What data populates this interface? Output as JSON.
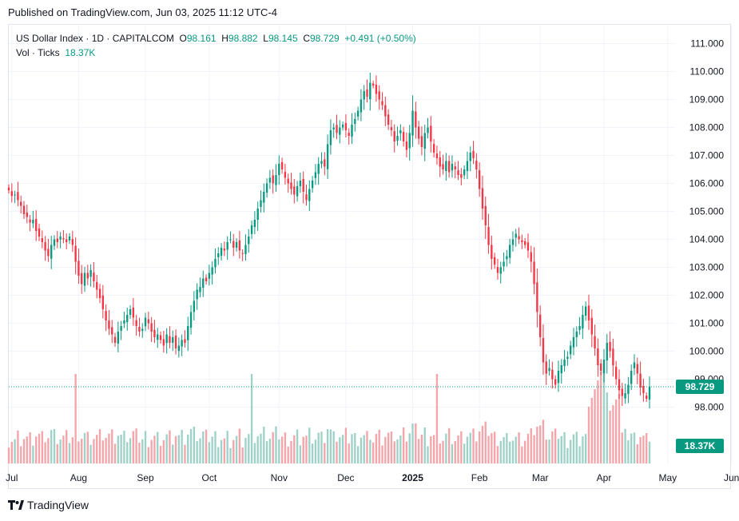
{
  "header": {
    "published": "Published on TradingView.com, Jun 03, 2025 11:12 UTC-4"
  },
  "legend": {
    "symbol": "US Dollar Index · 1D · CAPITALCOM",
    "o_label": "O",
    "o_value": "98.161",
    "h_label": "H",
    "h_value": "98.882",
    "l_label": "L",
    "l_value": "98.145",
    "c_label": "C",
    "c_value": "98.729",
    "change": "+0.491 (+0.50%)",
    "vol_label": "Vol · Ticks",
    "vol_value": "18.37K"
  },
  "price_tag": "98.729",
  "volume_tag": "18.37K",
  "footer": {
    "brand": "TradingView"
  },
  "colors": {
    "up": "#089981",
    "down": "#f23645",
    "vol_up": "#9ed2c9",
    "vol_down": "#f4a5aa",
    "grid": "#f0f3fa"
  },
  "chart_data": {
    "type": "candlestick",
    "y_ticks": [
      "111.000",
      "110.000",
      "109.000",
      "108.000",
      "107.000",
      "106.000",
      "105.000",
      "104.000",
      "103.000",
      "102.000",
      "101.000",
      "100.000",
      "99.000",
      "98.000"
    ],
    "ylim": [
      97.7,
      111.3
    ],
    "x_ticks": [
      "Jul",
      "Aug",
      "Sep",
      "Oct",
      "Nov",
      "Dec",
      "2025",
      "Feb",
      "Mar",
      "Apr",
      "May",
      "Jun"
    ],
    "x_tick_index": [
      1,
      23,
      45,
      66,
      89,
      111,
      133,
      155,
      175,
      196,
      217,
      238
    ],
    "last_price": 98.729,
    "closes": [
      105.75,
      105.55,
      105.6,
      105.4,
      105.2,
      104.9,
      104.8,
      104.6,
      104.7,
      104.3,
      104.1,
      103.9,
      103.6,
      103.4,
      103.8,
      104.0,
      103.9,
      104.1,
      104.0,
      103.9,
      104.1,
      103.8,
      103.2,
      102.7,
      102.4,
      102.8,
      102.6,
      102.9,
      102.5,
      102.2,
      101.9,
      101.5,
      101.1,
      100.8,
      100.6,
      100.3,
      100.7,
      100.9,
      101.1,
      101.3,
      101.5,
      101.2,
      100.9,
      100.7,
      100.8,
      101.2,
      101.0,
      100.7,
      100.5,
      100.6,
      100.4,
      100.2,
      100.6,
      100.3,
      100.5,
      100.1,
      100.2,
      100.4,
      100.3,
      100.9,
      101.4,
      101.8,
      102.2,
      102.3,
      102.6,
      102.5,
      102.8,
      103.0,
      103.3,
      103.5,
      103.7,
      103.6,
      103.9,
      104.0,
      103.7,
      103.9,
      103.6,
      103.5,
      103.8,
      104.1,
      104.5,
      104.7,
      105.1,
      105.4,
      105.7,
      106.0,
      106.2,
      106.0,
      106.3,
      106.7,
      106.5,
      106.2,
      106.0,
      105.8,
      105.6,
      105.9,
      106.1,
      105.7,
      105.4,
      105.8,
      106.1,
      106.4,
      106.7,
      106.8,
      106.6,
      107.4,
      107.9,
      108.0,
      107.8,
      108.0,
      108.1,
      107.9,
      107.7,
      108.1,
      108.3,
      108.6,
      109.0,
      109.3,
      109.1,
      109.6,
      109.5,
      109.2,
      109.0,
      108.8,
      108.4,
      108.1,
      107.9,
      107.5,
      107.7,
      107.9,
      107.5,
      107.2,
      107.8,
      108.6,
      108.0,
      107.6,
      107.3,
      107.8,
      108.0,
      107.5,
      107.1,
      106.9,
      106.6,
      106.5,
      106.8,
      106.4,
      106.7,
      106.5,
      106.3,
      106.2,
      106.5,
      106.8,
      107.1,
      106.9,
      106.5,
      105.8,
      105.1,
      104.5,
      103.8,
      103.3,
      103.1,
      102.8,
      103.0,
      103.2,
      103.4,
      103.8,
      104.0,
      104.2,
      104.0,
      103.9,
      103.8,
      103.6,
      103.2,
      102.4,
      101.4,
      100.5,
      99.6,
      99.2,
      99.4,
      99.0,
      98.8,
      99.3,
      99.5,
      99.7,
      99.8,
      100.2,
      100.5,
      100.7,
      100.9,
      101.3,
      101.6,
      101.1,
      100.6,
      100.1,
      99.5,
      99.3,
      99.7,
      100.3,
      100.0,
      99.5,
      99.0,
      98.6,
      98.4,
      98.5,
      98.8,
      99.3,
      99.6,
      99.2,
      98.7,
      98.5,
      98.3,
      98.73
    ],
    "volume_last": "18.37K"
  }
}
